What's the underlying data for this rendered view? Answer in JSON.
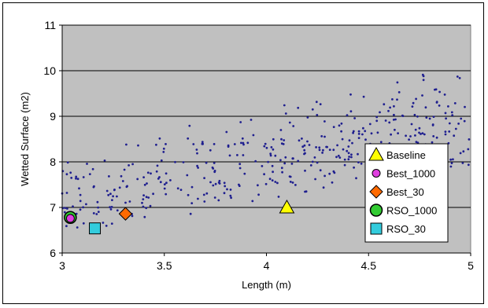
{
  "chart_data": {
    "type": "scatter",
    "title": "",
    "xlabel": "Length (m)",
    "ylabel": "Wetted Surface (m2)",
    "xlim": [
      3,
      5
    ],
    "ylim": [
      6,
      11
    ],
    "x_ticks": [
      "3",
      "3.5",
      "4",
      "4.5",
      "5"
    ],
    "y_ticks": [
      "6",
      "7",
      "8",
      "9",
      "10",
      "11"
    ],
    "grid": "horizontal",
    "legend": "right",
    "colors": {
      "plot_bg": "#c0c0c0",
      "cloud": "#1f1f8f",
      "baseline": "#ffff00",
      "best_1000": "#e040e0",
      "best_30": "#ff6a00",
      "rso_1000": "#33cc33",
      "rso_30": "#33ccdd"
    },
    "cloud": {
      "n": 420,
      "seed": 7,
      "x_range": [
        3,
        5
      ],
      "y_lower": [
        6.4,
        7.85
      ],
      "y_upper": [
        8.1,
        10.4
      ]
    },
    "series": [
      {
        "name": "Baseline",
        "marker": "triangle",
        "color": "#ffff00",
        "points": [
          [
            4.1,
            7.0
          ]
        ]
      },
      {
        "name": "Best_1000",
        "marker": "circle-small",
        "color": "#e040e0",
        "points": [
          [
            3.04,
            6.76
          ]
        ]
      },
      {
        "name": "Best_30",
        "marker": "diamond",
        "color": "#ff6a00",
        "points": [
          [
            3.31,
            6.86
          ]
        ]
      },
      {
        "name": "RSO_1000",
        "marker": "circle",
        "color": "#33cc33",
        "points": [
          [
            3.04,
            6.78
          ]
        ]
      },
      {
        "name": "RSO_30",
        "marker": "square",
        "color": "#33ccdd",
        "points": [
          [
            3.16,
            6.54
          ]
        ]
      }
    ]
  }
}
